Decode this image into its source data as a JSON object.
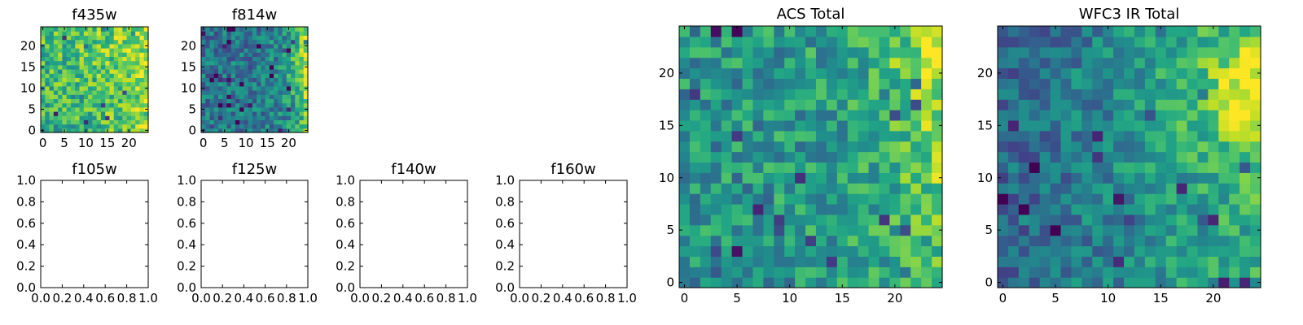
{
  "figure": {
    "colormap": "viridis",
    "grid": false,
    "heatmap_panels": [
      {
        "id": "f435w",
        "title": "f435w",
        "nx": 25,
        "ny": 25,
        "xticks": [
          0,
          5,
          10,
          15,
          20
        ],
        "yticks": [
          0,
          5,
          10,
          15,
          20
        ],
        "gradient": "brighter toward right edge",
        "noise": 0.22
      },
      {
        "id": "f814w",
        "title": "f814w",
        "nx": 25,
        "ny": 25,
        "xticks": [
          0,
          5,
          10,
          15,
          20
        ],
        "yticks": [
          0,
          5,
          10,
          15,
          20
        ],
        "gradient": "dark-teal field with bright yellow band on right edge",
        "noise": 0.2
      },
      {
        "id": "acs_total",
        "title": "ACS Total",
        "nx": 25,
        "ny": 25,
        "xticks": [
          0,
          5,
          10,
          15,
          20
        ],
        "yticks": [
          0,
          5,
          10,
          15,
          20
        ],
        "gradient": "green field, yellow toward upper-right edge",
        "noise": 0.2
      },
      {
        "id": "wfc3_ir_total",
        "title": "WFC3 IR Total",
        "nx": 25,
        "ny": 25,
        "xticks": [
          0,
          5,
          10,
          15,
          20
        ],
        "yticks": [
          0,
          5,
          10,
          15,
          20
        ],
        "gradient": "blue field, yellow toward upper-right edge",
        "noise": 0.17
      }
    ],
    "empty_panels": [
      {
        "id": "f105w",
        "title": "f105w",
        "xticks": [
          "0.0",
          "0.2",
          "0.4",
          "0.6",
          "0.8",
          "1.0"
        ],
        "yticks": [
          "0.0",
          "0.2",
          "0.4",
          "0.6",
          "0.8",
          "1.0"
        ]
      },
      {
        "id": "f125w",
        "title": "f125w",
        "xticks": [
          "0.0",
          "0.2",
          "0.4",
          "0.6",
          "0.8",
          "1.0"
        ],
        "yticks": [
          "0.0",
          "0.2",
          "0.4",
          "0.6",
          "0.8",
          "1.0"
        ]
      },
      {
        "id": "f140w",
        "title": "f140w",
        "xticks": [
          "0.0",
          "0.2",
          "0.4",
          "0.6",
          "0.8",
          "1.0"
        ],
        "yticks": [
          "0.0",
          "0.2",
          "0.4",
          "0.6",
          "0.8",
          "1.0"
        ]
      },
      {
        "id": "f160w",
        "title": "f160w",
        "xticks": [
          "0.0",
          "0.2",
          "0.4",
          "0.6",
          "0.8",
          "1.0"
        ],
        "yticks": [
          "0.0",
          "0.2",
          "0.4",
          "0.6",
          "0.8",
          "1.0"
        ]
      }
    ]
  },
  "chart_data": [
    {
      "type": "heatmap",
      "title": "f435w",
      "x_range": [
        0,
        24
      ],
      "y_range": [
        0,
        24
      ],
      "xticks": [
        0,
        5,
        10,
        15,
        20
      ],
      "yticks": [
        0,
        5,
        10,
        15,
        20
      ],
      "colormap": "viridis"
    },
    {
      "type": "heatmap",
      "title": "f814w",
      "x_range": [
        0,
        24
      ],
      "y_range": [
        0,
        24
      ],
      "xticks": [
        0,
        5,
        10,
        15,
        20
      ],
      "yticks": [
        0,
        5,
        10,
        15,
        20
      ],
      "colormap": "viridis"
    },
    {
      "type": "line",
      "title": "f105w",
      "xlim": [
        0.0,
        1.0
      ],
      "ylim": [
        0.0,
        1.0
      ],
      "series": []
    },
    {
      "type": "line",
      "title": "f125w",
      "xlim": [
        0.0,
        1.0
      ],
      "ylim": [
        0.0,
        1.0
      ],
      "series": []
    },
    {
      "type": "line",
      "title": "f140w",
      "xlim": [
        0.0,
        1.0
      ],
      "ylim": [
        0.0,
        1.0
      ],
      "series": []
    },
    {
      "type": "line",
      "title": "f160w",
      "xlim": [
        0.0,
        1.0
      ],
      "ylim": [
        0.0,
        1.0
      ],
      "series": []
    },
    {
      "type": "heatmap",
      "title": "ACS Total",
      "x_range": [
        0,
        24
      ],
      "y_range": [
        0,
        24
      ],
      "xticks": [
        0,
        5,
        10,
        15,
        20
      ],
      "yticks": [
        0,
        5,
        10,
        15,
        20
      ],
      "colormap": "viridis"
    },
    {
      "type": "heatmap",
      "title": "WFC3 IR Total",
      "x_range": [
        0,
        24
      ],
      "y_range": [
        0,
        24
      ],
      "xticks": [
        0,
        5,
        10,
        15,
        20
      ],
      "yticks": [
        0,
        5,
        10,
        15,
        20
      ],
      "colormap": "viridis"
    }
  ]
}
